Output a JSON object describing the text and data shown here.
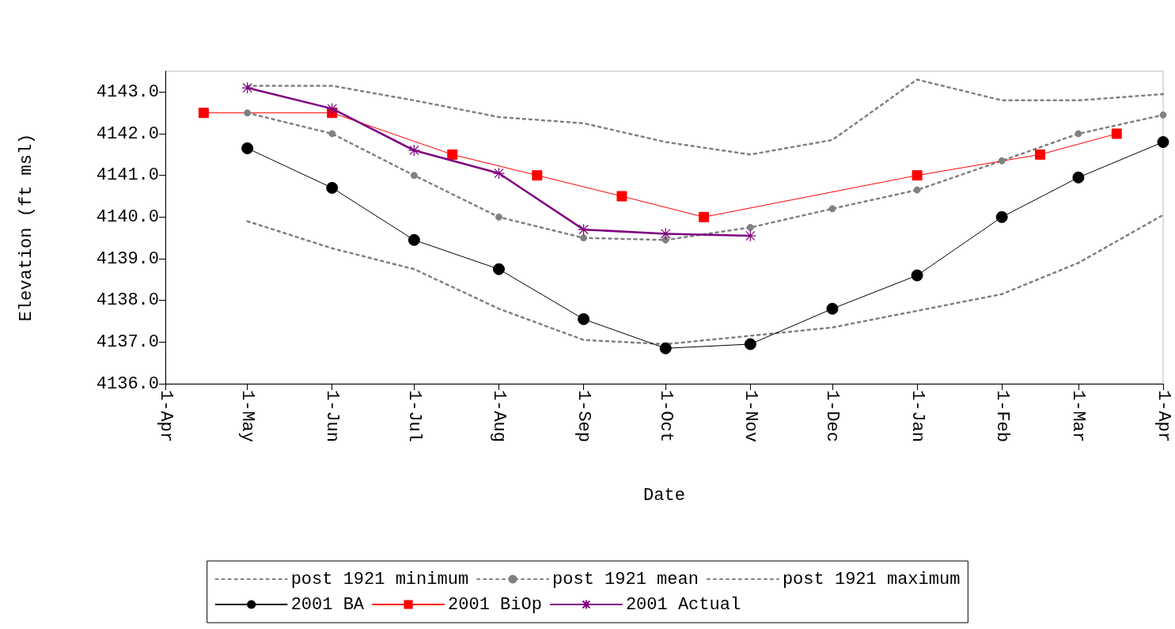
{
  "chart_data": {
    "type": "line",
    "xlabel": "Date",
    "ylabel": "Elevation (ft msl)",
    "xlim": [
      "2001-04-01",
      "2002-04-01"
    ],
    "xticks": [
      {
        "value": "2001-04-01",
        "label": "1-Apr"
      },
      {
        "value": "2001-05-01",
        "label": "1-May"
      },
      {
        "value": "2001-06-01",
        "label": "1-Jun"
      },
      {
        "value": "2001-07-01",
        "label": "1-Jul"
      },
      {
        "value": "2001-08-01",
        "label": "1-Aug"
      },
      {
        "value": "2001-09-01",
        "label": "1-Sep"
      },
      {
        "value": "2001-10-01",
        "label": "1-Oct"
      },
      {
        "value": "2001-11-01",
        "label": "1-Nov"
      },
      {
        "value": "2001-12-01",
        "label": "1-Dec"
      },
      {
        "value": "2002-01-01",
        "label": "1-Jan"
      },
      {
        "value": "2002-02-01",
        "label": "1-Feb"
      },
      {
        "value": "2002-03-01",
        "label": "1-Mar"
      },
      {
        "value": "2002-04-01",
        "label": "1-Apr"
      }
    ],
    "ylim": [
      4136,
      4143.5
    ],
    "yticks": [
      {
        "value": 4136,
        "label": "4136.0"
      },
      {
        "value": 4137,
        "label": "4137.0"
      },
      {
        "value": 4138,
        "label": "4138.0"
      },
      {
        "value": 4139,
        "label": "4139.0"
      },
      {
        "value": 4140,
        "label": "4140.0"
      },
      {
        "value": 4141,
        "label": "4141.0"
      },
      {
        "value": 4142,
        "label": "4142.0"
      },
      {
        "value": 4143,
        "label": "4143.0"
      }
    ],
    "grid": false,
    "legend": "bottom",
    "series": [
      {
        "name": "post 1921 minimum",
        "color": "#808080",
        "marker": "none",
        "line_style": "dotted",
        "x": [
          "2001-05-01",
          "2001-06-01",
          "2001-07-01",
          "2001-08-01",
          "2001-09-01",
          "2001-10-01",
          "2001-11-01",
          "2001-12-01",
          "2002-01-01",
          "2002-02-01",
          "2002-03-01",
          "2002-04-01"
        ],
        "values": [
          4139.9,
          4139.25,
          4138.75,
          4137.8,
          4137.05,
          4136.95,
          4137.15,
          4137.35,
          4137.75,
          4138.15,
          4138.9,
          4140.05
        ]
      },
      {
        "name": "post 1921 mean",
        "color": "#808080",
        "marker": "circle",
        "line_style": "dotted",
        "x": [
          "2001-05-01",
          "2001-06-01",
          "2001-07-01",
          "2001-08-01",
          "2001-09-01",
          "2001-10-01",
          "2001-11-01",
          "2001-12-01",
          "2002-01-01",
          "2002-02-01",
          "2002-03-01",
          "2002-04-01"
        ],
        "values": [
          4142.5,
          4142.0,
          4141.0,
          4140.0,
          4139.5,
          4139.45,
          4139.75,
          4140.2,
          4140.65,
          4141.35,
          4142.0,
          4142.45
        ]
      },
      {
        "name": "post 1921 maximum",
        "color": "#808080",
        "marker": "none",
        "line_style": "dotted",
        "x": [
          "2001-05-01",
          "2001-06-01",
          "2001-07-01",
          "2001-08-01",
          "2001-09-01",
          "2001-10-01",
          "2001-11-01",
          "2001-12-01",
          "2002-01-01",
          "2002-02-01",
          "2002-03-01",
          "2002-04-01"
        ],
        "values": [
          4143.15,
          4143.15,
          4142.8,
          4142.4,
          4142.25,
          4141.8,
          4141.5,
          4141.85,
          4143.3,
          4142.8,
          4142.8,
          4142.95
        ]
      },
      {
        "name": "2001 BA",
        "color": "#000000",
        "marker": "circle",
        "line_style": "solid",
        "x": [
          "2001-05-01",
          "2001-06-01",
          "2001-07-01",
          "2001-08-01",
          "2001-09-01",
          "2001-10-01",
          "2001-11-01",
          "2001-12-01",
          "2002-01-01",
          "2002-02-01",
          "2002-03-01",
          "2002-04-01"
        ],
        "values": [
          4141.65,
          4140.7,
          4139.45,
          4138.75,
          4137.55,
          4136.85,
          4136.95,
          4137.8,
          4138.6,
          4140.0,
          4140.95,
          4141.8
        ]
      },
      {
        "name": "2001 BiOp",
        "color": "#ff0000",
        "marker": "square",
        "line_style": "solid",
        "x": [
          "2001-04-15",
          "2001-06-01",
          "2001-07-15",
          "2001-08-15",
          "2001-09-15",
          "2001-10-15",
          "2002-01-01",
          "2002-02-15",
          "2002-03-15"
        ],
        "values": [
          4142.5,
          4142.5,
          4141.5,
          4141.0,
          4140.5,
          4140.0,
          4141.0,
          4141.5,
          4142.0
        ]
      },
      {
        "name": "2001 Actual",
        "color": "#800080",
        "marker": "cross",
        "line_style": "solid",
        "x": [
          "2001-05-01",
          "2001-06-01",
          "2001-07-01",
          "2001-08-01",
          "2001-09-01",
          "2001-10-01",
          "2001-11-01"
        ],
        "values": [
          4143.1,
          4142.6,
          4141.6,
          4141.05,
          4139.7,
          4139.6,
          4139.55
        ]
      }
    ]
  }
}
